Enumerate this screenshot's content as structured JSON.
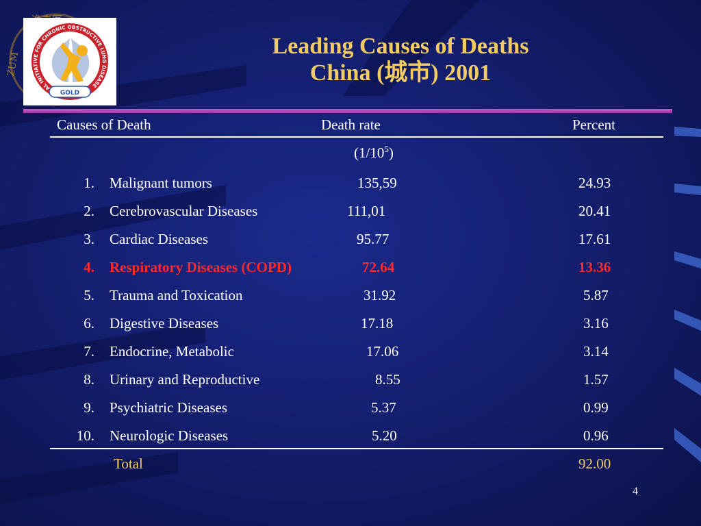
{
  "title": {
    "line1": "Leading Causes of Deaths",
    "line2": "China (城市)  2001"
  },
  "logo": {
    "ring_text": "GLOBAL INITIATIVE FOR CHRONIC OBSTRUCTIVE LUNG DISEASE",
    "label": "GOLD"
  },
  "watermark": {
    "chars": "逸夫医",
    "side_text": "ZUM"
  },
  "table": {
    "headers": {
      "cause": "Causes of Death",
      "rate": "Death rate",
      "percent": "Percent"
    },
    "rate_unit_base": "(1/10",
    "rate_unit_exp": "5",
    "rate_unit_close": ")",
    "rows": [
      {
        "num": "1.",
        "cause": "Malignant tumors",
        "rate": "135,59",
        "percent": "24.93"
      },
      {
        "num": "2.",
        "cause": "Cerebrovascular Diseases",
        "rate": "111,01",
        "percent": "20.41"
      },
      {
        "num": "3.",
        "cause": "Cardiac Diseases",
        "rate": "95.77",
        "percent": "17.61"
      },
      {
        "num": "4.",
        "cause": "Respiratory Diseases (COPD)",
        "rate": "72.64",
        "percent": "13.36"
      },
      {
        "num": "5.",
        "cause": "Trauma and Toxication",
        "rate": "31.92",
        "percent": "5.87"
      },
      {
        "num": "6.",
        "cause": "Digestive Diseases",
        "rate": "17.18",
        "percent": "3.16"
      },
      {
        "num": "7.",
        "cause": "Endocrine, Metabolic",
        "rate": "17.06",
        "percent": "3.14"
      },
      {
        "num": "8.",
        "cause": "Urinary and Reproductive",
        "rate": "8.55",
        "percent": "1.57"
      },
      {
        "num": "9.",
        "cause": "Psychiatric Diseases",
        "rate": "5.37",
        "percent": "0.99"
      },
      {
        "num": "10.",
        "cause": "Neurologic Diseases",
        "rate": "5.20",
        "percent": "0.96"
      }
    ],
    "highlight_row": 4,
    "total": {
      "label": "Total",
      "percent": "92.00"
    }
  },
  "page_number": "4",
  "colors": {
    "background": "#141f70",
    "title": "#f2cc63",
    "highlight": "#ff2a2a",
    "rule": "#c558c8",
    "total": "#f2cc63"
  }
}
